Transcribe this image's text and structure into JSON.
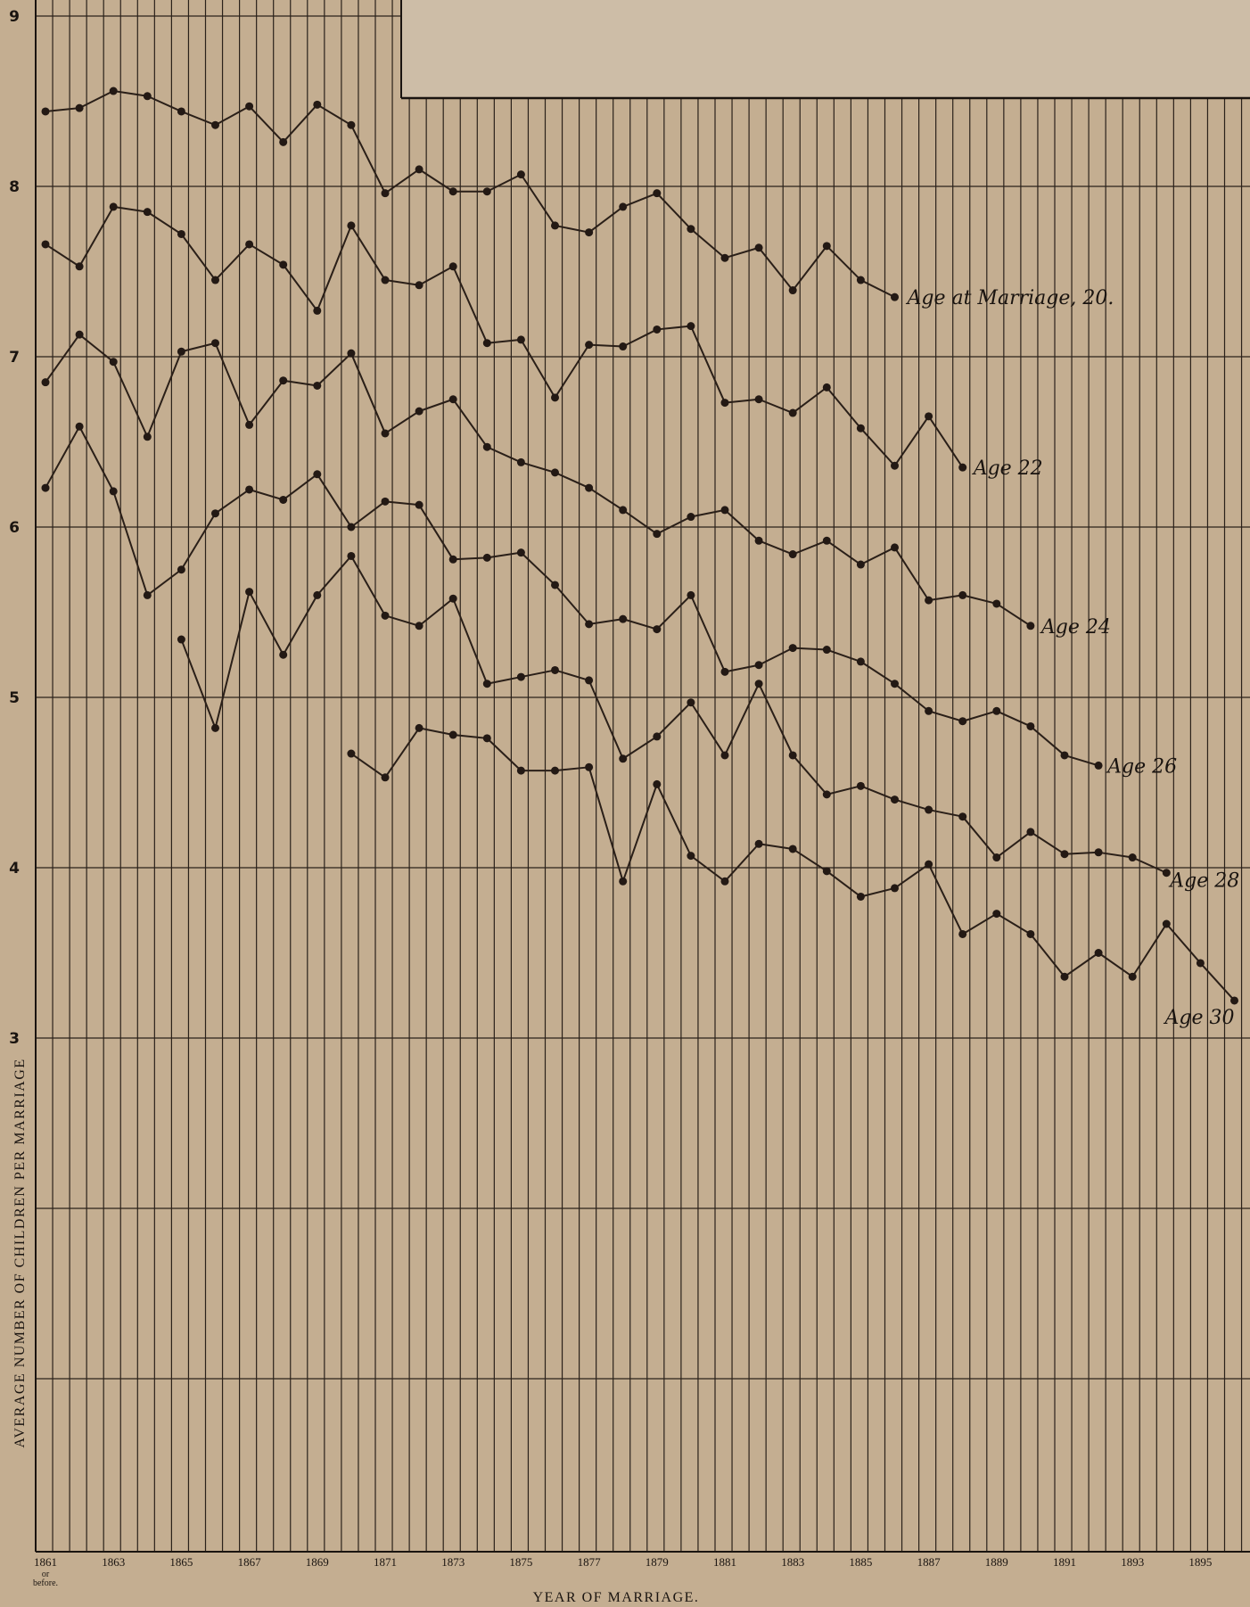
{
  "chart_data": {
    "type": "line",
    "title": "",
    "xlabel": "YEAR OF MARRIAGE.",
    "ylabel": "AVERAGE NUMBER OF CHILDREN PER MARRIAGE",
    "x": [
      1861,
      1862,
      1863,
      1864,
      1865,
      1866,
      1867,
      1868,
      1869,
      1870,
      1871,
      1872,
      1873,
      1874,
      1875,
      1876,
      1877,
      1878,
      1879,
      1880,
      1881,
      1882,
      1883,
      1884,
      1885,
      1886,
      1887,
      1888,
      1889,
      1890,
      1891,
      1892,
      1893,
      1894,
      1895,
      1896
    ],
    "xticks": [
      "1861",
      "1863",
      "1865",
      "1867",
      "1869",
      "1871",
      "1873",
      "1875",
      "1877",
      "1879",
      "1881",
      "1883",
      "1885",
      "1887",
      "1889",
      "1891",
      "1893",
      "1895"
    ],
    "first_tick_note": "or before.",
    "xlim": [
      1861,
      1896
    ],
    "yticks": [
      "3",
      "4",
      "5",
      "6",
      "7",
      "8",
      "9"
    ],
    "ylim": [
      0,
      9
    ],
    "grid": true,
    "series": [
      {
        "name": "Age at Marriage, 20.",
        "values": [
          8.44,
          8.46,
          8.56,
          8.53,
          8.44,
          8.36,
          8.47,
          8.26,
          8.48,
          8.36,
          7.96,
          8.1,
          7.97,
          7.97,
          8.07,
          7.77,
          7.73,
          7.88,
          7.96,
          7.75,
          7.58,
          7.64,
          7.39,
          7.65,
          7.45,
          7.35,
          null,
          null,
          null,
          null,
          null,
          null,
          null,
          null,
          null,
          null
        ]
      },
      {
        "name": "Age 22",
        "values": [
          7.66,
          7.53,
          7.88,
          7.85,
          7.72,
          7.45,
          7.66,
          7.54,
          7.27,
          7.77,
          7.45,
          7.42,
          7.53,
          7.08,
          7.1,
          6.76,
          7.07,
          7.06,
          7.16,
          7.18,
          6.73,
          6.75,
          6.67,
          6.82,
          6.58,
          6.36,
          6.65,
          6.35,
          null,
          null,
          null,
          null,
          null,
          null,
          null,
          null
        ]
      },
      {
        "name": "Age 24",
        "values": [
          6.85,
          7.13,
          6.97,
          6.53,
          7.03,
          7.08,
          6.6,
          6.86,
          6.83,
          7.02,
          6.55,
          6.68,
          6.75,
          6.47,
          6.38,
          6.32,
          6.23,
          6.1,
          5.96,
          6.06,
          6.1,
          5.92,
          5.84,
          5.92,
          5.78,
          5.88,
          5.57,
          5.6,
          5.55,
          5.42,
          null,
          null,
          null,
          null,
          null,
          null
        ]
      },
      {
        "name": "Age 26",
        "values": [
          6.23,
          6.59,
          6.21,
          5.6,
          5.75,
          6.08,
          6.22,
          6.16,
          6.31,
          6.0,
          6.15,
          6.13,
          5.81,
          5.82,
          5.85,
          5.66,
          5.43,
          5.46,
          5.4,
          5.6,
          5.15,
          5.19,
          5.29,
          5.28,
          5.21,
          5.08,
          4.92,
          4.86,
          4.92,
          4.83,
          4.66,
          4.6,
          null,
          null,
          null,
          null
        ]
      },
      {
        "name": "Age 28",
        "values": [
          null,
          null,
          null,
          null,
          5.34,
          4.82,
          5.62,
          5.25,
          5.6,
          5.83,
          5.48,
          5.42,
          5.58,
          5.08,
          5.12,
          5.16,
          5.1,
          4.64,
          4.77,
          4.97,
          4.66,
          5.08,
          4.66,
          4.43,
          4.48,
          4.4,
          4.34,
          4.3,
          4.06,
          4.21,
          4.08,
          4.09,
          4.06,
          3.97,
          null,
          null
        ]
      },
      {
        "name": "Age 30",
        "values": [
          null,
          null,
          null,
          null,
          null,
          null,
          null,
          null,
          null,
          4.67,
          4.53,
          4.82,
          4.78,
          4.76,
          4.57,
          4.57,
          4.59,
          3.92,
          4.49,
          4.07,
          3.92,
          4.14,
          4.11,
          3.98,
          3.83,
          3.88,
          4.02,
          3.61,
          3.73,
          3.61,
          3.36,
          3.5,
          3.36,
          3.67,
          3.44,
          3.22
        ]
      }
    ]
  }
}
